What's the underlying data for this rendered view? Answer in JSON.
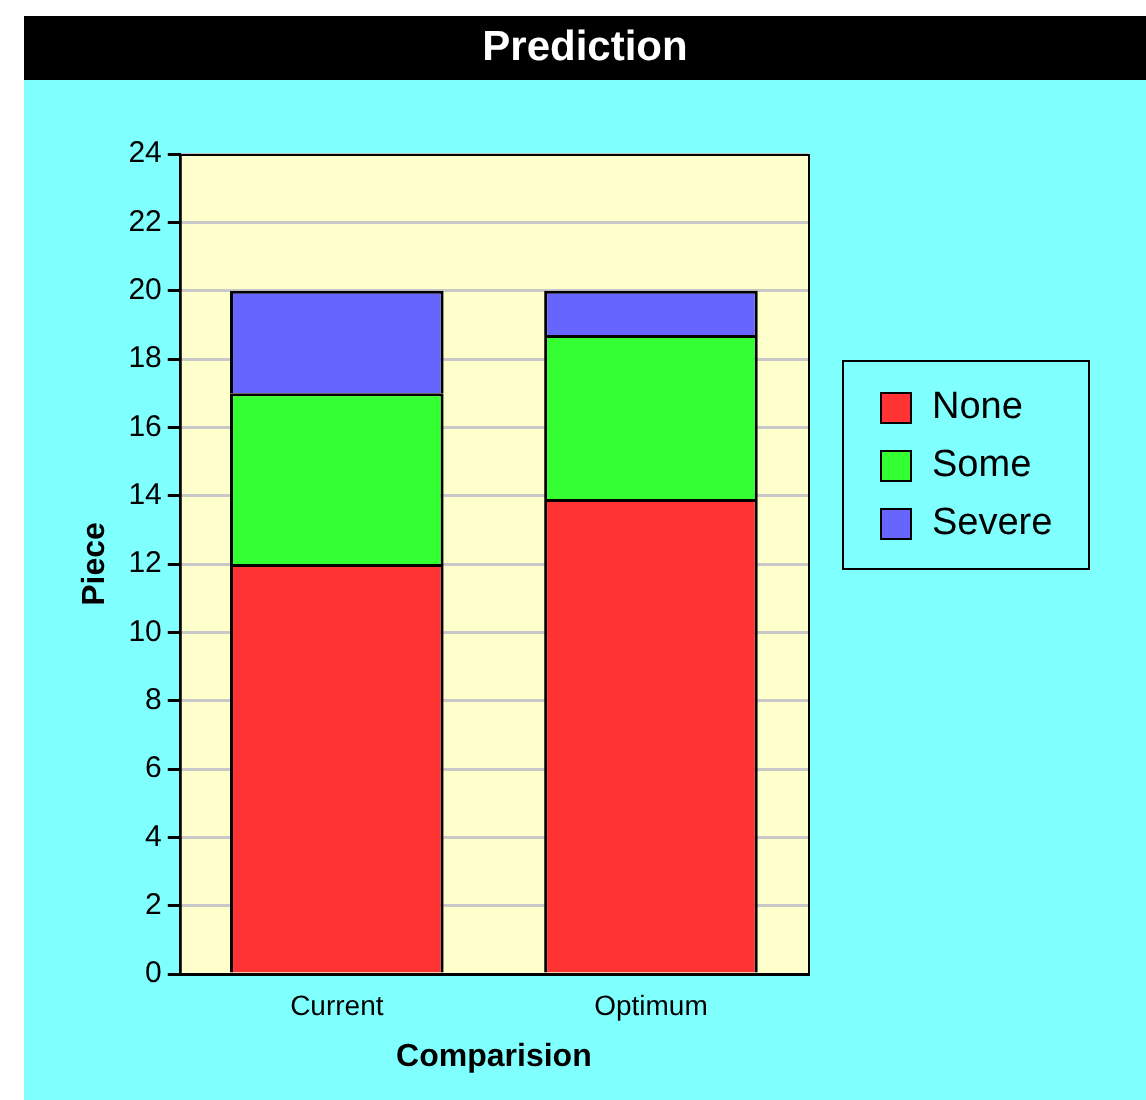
{
  "chart_data": {
    "type": "bar",
    "title": "Prediction",
    "xlabel": "Comparision",
    "ylabel": "Piece",
    "categories": [
      "Current",
      "Optimum"
    ],
    "stacked": true,
    "series": [
      {
        "name": "None",
        "color": "#ff3333",
        "values": [
          12,
          13.9
        ]
      },
      {
        "name": "Some",
        "color": "#33ff33",
        "values": [
          5,
          4.8
        ]
      },
      {
        "name": "Severe",
        "color": "#6666ff",
        "values": [
          3,
          1.3
        ]
      }
    ],
    "ylim": [
      0,
      24
    ],
    "yticks": [
      0,
      2,
      4,
      6,
      8,
      10,
      12,
      14,
      16,
      18,
      20,
      22,
      24
    ],
    "grid": "y",
    "legend": "right"
  }
}
